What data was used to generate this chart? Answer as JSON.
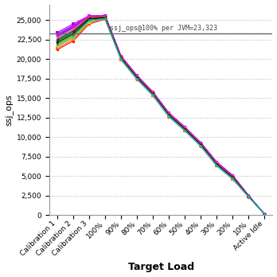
{
  "x_labels": [
    "Calibration 1",
    "Calibration 2",
    "Calibration 3",
    "100%",
    "90%",
    "80%",
    "70%",
    "60%",
    "50%",
    "40%",
    "30%",
    "20%",
    "10%",
    "Active Idle"
  ],
  "hline_y": 23323,
  "hline_label": "ssj_ops@100% per JVM=23,323",
  "ylabel": "ssj_ops",
  "xlabel": "Target Load",
  "ylim": [
    0,
    27000
  ],
  "yticks": [
    0,
    2500,
    5000,
    7500,
    10000,
    12500,
    15000,
    17500,
    20000,
    22500,
    25000
  ],
  "background_color": "#ffffff",
  "grid_color": "#bbbbbb",
  "figsize": [
    3.48,
    3.48
  ],
  "dpi": 100,
  "line_colors": [
    "#FF0000",
    "#FF6600",
    "#FFAA00",
    "#FFFF00",
    "#AAFF00",
    "#00FF00",
    "#00FFAA",
    "#00FFFF",
    "#00AAFF",
    "#0000FF",
    "#6600FF",
    "#AA00FF",
    "#FF00FF",
    "#FF00AA",
    "#FF69B4",
    "#8B0000",
    "#006400",
    "#000080",
    "#808000",
    "#00CED1"
  ],
  "series": [
    [
      21200,
      22300,
      24500,
      25100,
      19900,
      17400,
      15300,
      12600,
      10800,
      8800,
      6300,
      4600,
      2300,
      100
    ],
    [
      21400,
      22500,
      24600,
      25150,
      19950,
      17450,
      15350,
      12650,
      10850,
      8850,
      6350,
      4650,
      2320,
      100
    ],
    [
      21600,
      22700,
      24700,
      25200,
      20000,
      17500,
      15400,
      12700,
      10900,
      8900,
      6400,
      4700,
      2340,
      100
    ],
    [
      21800,
      22900,
      24800,
      25250,
      20050,
      17550,
      15450,
      12750,
      10950,
      8950,
      6450,
      4750,
      2360,
      100
    ],
    [
      22000,
      23100,
      24900,
      25300,
      20100,
      17600,
      15500,
      12800,
      11000,
      9000,
      6500,
      4800,
      2380,
      100
    ],
    [
      22200,
      23300,
      25000,
      25350,
      20150,
      17650,
      15550,
      12850,
      11050,
      9050,
      6550,
      4850,
      2400,
      100
    ],
    [
      22400,
      23500,
      25100,
      25400,
      20200,
      17700,
      15600,
      12900,
      11100,
      9100,
      6600,
      4900,
      2420,
      100
    ],
    [
      22600,
      23700,
      25200,
      25450,
      20250,
      17750,
      15650,
      12950,
      11150,
      9150,
      6650,
      4950,
      2440,
      100
    ],
    [
      22800,
      23900,
      25300,
      25500,
      20300,
      17800,
      15700,
      13000,
      11200,
      9200,
      6700,
      5000,
      2460,
      100
    ],
    [
      23000,
      24100,
      25400,
      25550,
      20350,
      17850,
      15750,
      13050,
      11250,
      9250,
      6750,
      5050,
      2480,
      100
    ],
    [
      23200,
      24300,
      25500,
      25600,
      20400,
      17900,
      15800,
      13100,
      11300,
      9300,
      6800,
      5100,
      2500,
      100
    ],
    [
      23400,
      24500,
      25550,
      25550,
      20350,
      17850,
      15750,
      13050,
      11250,
      9250,
      6750,
      5050,
      2480,
      100
    ],
    [
      23100,
      24200,
      25480,
      25520,
      20320,
      17820,
      15720,
      13020,
      11220,
      9220,
      6720,
      5020,
      2460,
      100
    ],
    [
      22900,
      24000,
      25420,
      25480,
      20280,
      17780,
      15680,
      12980,
      11180,
      9180,
      6680,
      4980,
      2440,
      100
    ],
    [
      22700,
      23800,
      25350,
      25430,
      20230,
      17730,
      15630,
      12930,
      11130,
      9130,
      6630,
      4930,
      2420,
      100
    ],
    [
      22500,
      23600,
      25280,
      25380,
      20180,
      17680,
      15580,
      12880,
      11080,
      9080,
      6580,
      4880,
      2400,
      100
    ],
    [
      22300,
      23400,
      25200,
      25320,
      20120,
      17620,
      15520,
      12820,
      11020,
      9020,
      6520,
      4820,
      2380,
      100
    ],
    [
      22100,
      23200,
      25100,
      25250,
      20050,
      17550,
      15450,
      12750,
      10950,
      8950,
      6450,
      4750,
      2360,
      100
    ],
    [
      21900,
      23000,
      24980,
      25180,
      19980,
      17480,
      15380,
      12680,
      10880,
      8880,
      6380,
      4680,
      2340,
      100
    ],
    [
      21700,
      22800,
      24850,
      25120,
      19920,
      17420,
      15320,
      12620,
      10820,
      8820,
      6320,
      4620,
      2320,
      100
    ]
  ]
}
